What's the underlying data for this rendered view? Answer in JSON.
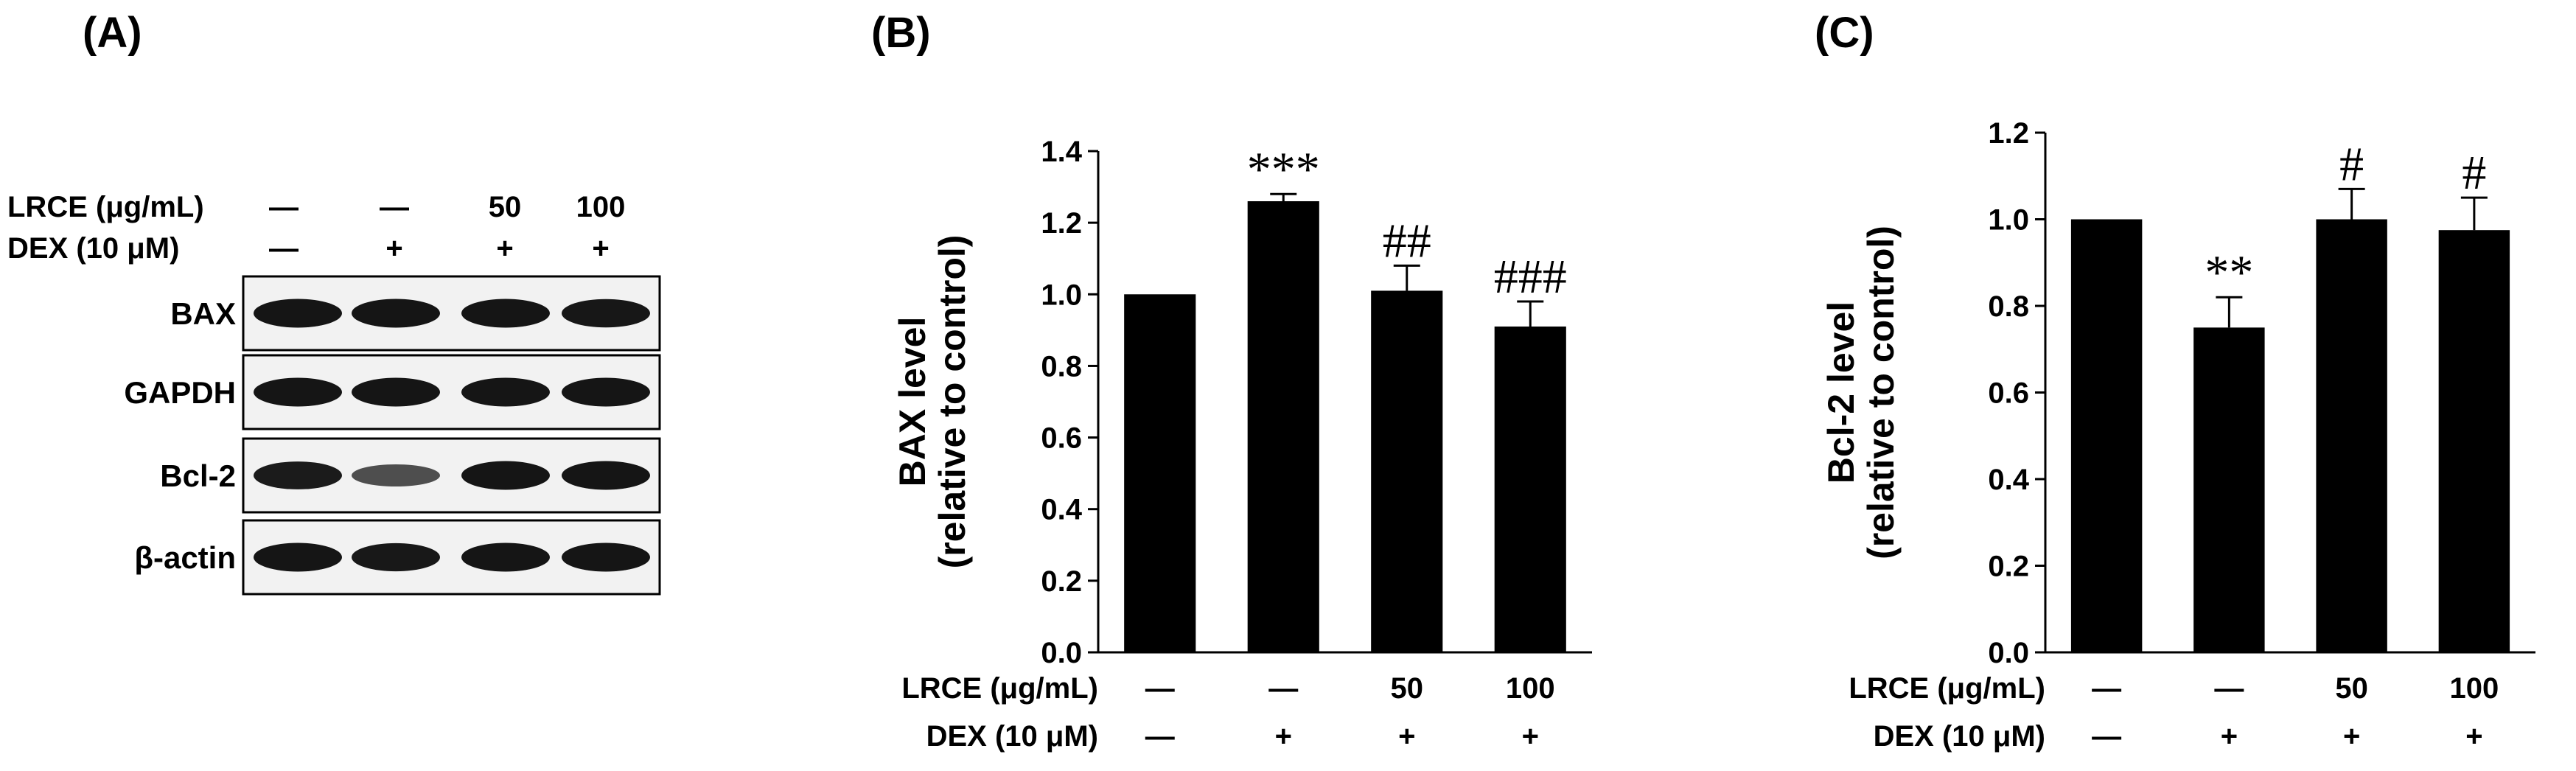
{
  "panels": {
    "a": {
      "label": "(A)"
    },
    "b": {
      "label": "(B)"
    },
    "c": {
      "label": "(C)"
    }
  },
  "conditions": {
    "lrce_label": "LRCE (μg/mL)",
    "dex_label": "DEX (10 μM)",
    "lrce_values": [
      "—",
      "—",
      "50",
      "100"
    ],
    "dex_values": [
      "—",
      "+",
      "+",
      "+"
    ]
  },
  "western_blot": {
    "bands": [
      {
        "label": "BAX",
        "intensities": [
          0.95,
          0.95,
          0.95,
          0.93
        ]
      },
      {
        "label": "GAPDH",
        "intensities": [
          0.95,
          0.95,
          0.95,
          0.95
        ]
      },
      {
        "label": "Bcl-2",
        "intensities": [
          0.9,
          0.55,
          0.95,
          0.95
        ]
      },
      {
        "label": "β-actin",
        "intensities": [
          0.95,
          0.92,
          0.95,
          0.95
        ]
      }
    ]
  },
  "chart_data": [
    {
      "type": "bar",
      "panel": "B",
      "title": "",
      "xlabel": "",
      "ylabel_line1": "BAX level",
      "ylabel_line2": "(relative to control)",
      "ylim": [
        0,
        1.4
      ],
      "ticks": [
        0.0,
        0.2,
        0.4,
        0.6,
        0.8,
        1.0,
        1.2,
        1.4
      ],
      "tick_labels": [
        "0.0",
        "0.2",
        "0.4",
        "0.6",
        "0.8",
        "1.0",
        "1.2",
        "1.4"
      ],
      "categories": [
        "Control",
        "DEX",
        "DEX + LRCE 50",
        "DEX + LRCE 100"
      ],
      "values": [
        1.0,
        1.26,
        1.01,
        0.91
      ],
      "errors": [
        0.0,
        0.02,
        0.07,
        0.07
      ],
      "significance": [
        "",
        "***",
        "##",
        "###"
      ],
      "color": "#000000"
    },
    {
      "type": "bar",
      "panel": "C",
      "title": "",
      "xlabel": "",
      "ylabel_line1": "Bcl-2 level",
      "ylabel_line2": "(relative to control)",
      "ylim": [
        0,
        1.2
      ],
      "ticks": [
        0.0,
        0.2,
        0.4,
        0.6,
        0.8,
        1.0,
        1.2
      ],
      "tick_labels": [
        "0.0",
        "0.2",
        "0.4",
        "0.6",
        "0.8",
        "1.0",
        "1.2"
      ],
      "categories": [
        "Control",
        "DEX",
        "DEX + LRCE 50",
        "DEX + LRCE 100"
      ],
      "values": [
        1.0,
        0.75,
        1.0,
        0.975
      ],
      "errors": [
        0.0,
        0.07,
        0.07,
        0.075
      ],
      "significance": [
        "",
        "**",
        "#",
        "#"
      ],
      "color": "#000000"
    }
  ]
}
